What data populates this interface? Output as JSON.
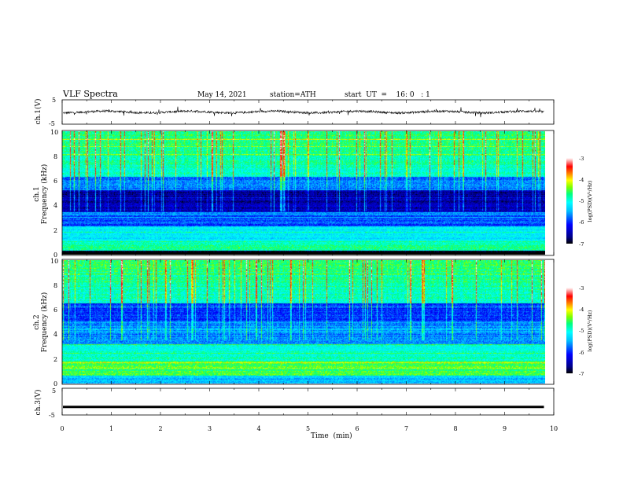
{
  "header": {
    "title": "VLF  Spectra",
    "date": "May 14, 2021",
    "station": "station=ATH",
    "start_ut": "start  UT  =    16: 0   : 1"
  },
  "chart_data": [
    {
      "type": "line",
      "name": "ch1-waveform",
      "ylabel": "ch.1(V)",
      "ylim": [
        -5,
        5
      ],
      "yticks": [
        "5",
        "-5"
      ],
      "xlim": [
        0,
        10
      ],
      "xlabel": "",
      "description_of_values": "noisy waveform around 0 V, amplitude about ±1 V with sporadic spikes",
      "trace_end_min": 9.8
    },
    {
      "type": "heatmap",
      "name": "ch1-spectrogram",
      "ylabel": "ch.1\nFrequency  (kHz)",
      "ylim": [
        0,
        10
      ],
      "yticks": [
        "0",
        "2",
        "4",
        "6",
        "8",
        "10"
      ],
      "xlim": [
        0,
        10
      ],
      "colorbar": {
        "label": "log(PSD)(V²/Hz)",
        "range": [
          -7,
          -3
        ],
        "ticks": [
          "-3",
          "-4",
          "-5",
          "-6",
          "-7"
        ]
      }
    },
    {
      "type": "heatmap",
      "name": "ch2-spectrogram",
      "ylabel": "ch.2\nFrequency  (kHz)",
      "ylim": [
        0,
        10
      ],
      "yticks": [
        "0",
        "2",
        "4",
        "6",
        "8",
        "10"
      ],
      "xlim": [
        0,
        10
      ],
      "colorbar": {
        "label": "log(PSD)(V²/Hz)",
        "range": [
          -7,
          -3
        ],
        "ticks": [
          "-3",
          "-4",
          "-5",
          "-6",
          "-7"
        ]
      }
    },
    {
      "type": "line",
      "name": "ch3-waveform",
      "ylabel": "ch.3(V)",
      "ylim": [
        -5,
        5
      ],
      "yticks": [
        "5",
        "-5"
      ],
      "xlim": [
        0,
        10
      ],
      "xlabel": "Time  (min)",
      "xticks": [
        "0",
        "1",
        "2",
        "3",
        "4",
        "5",
        "6",
        "7",
        "8",
        "9",
        "10"
      ],
      "description_of_values": "flat trace near -2 V",
      "level_v": -2,
      "trace_end_min": 9.8
    }
  ],
  "colors": {
    "colormap": [
      "#000000",
      "#00008b",
      "#0000ff",
      "#00bfff",
      "#00ffff",
      "#00ff7f",
      "#7fff00",
      "#ffff00",
      "#ff7f00",
      "#ff0000",
      "#ffffff"
    ]
  }
}
